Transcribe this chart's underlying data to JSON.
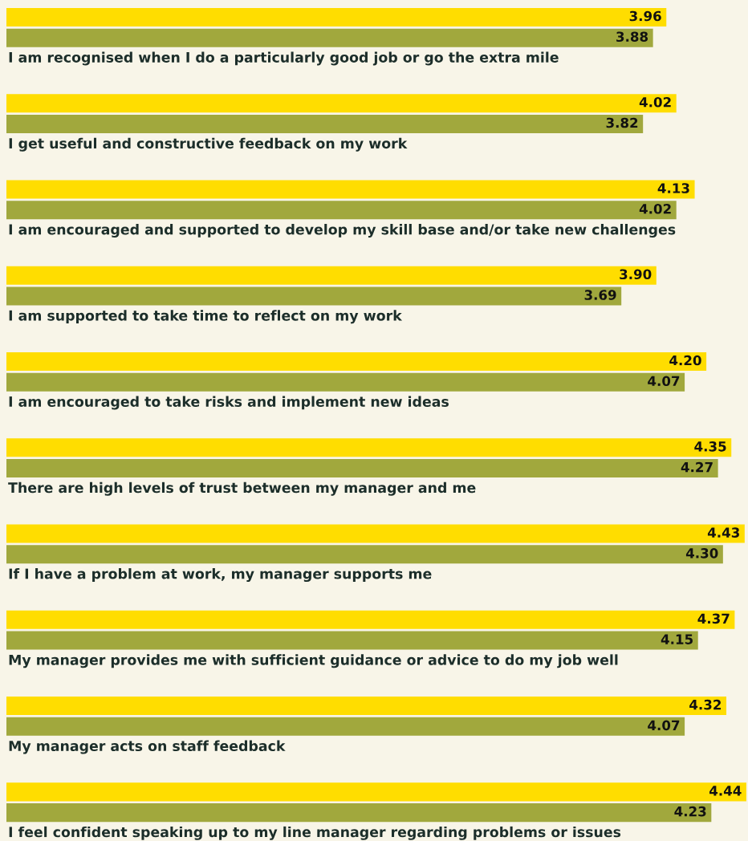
{
  "chart_data": {
    "type": "bar",
    "orientation": "horizontal",
    "categories": [
      "I am recognised when I do a particularly good job or go the extra mile",
      "I get useful and constructive feedback on my work",
      "I am encouraged and supported to develop my skill base and/or take new challenges",
      "I am supported to take time to reflect on my work",
      "I am encouraged to take risks and implement new ideas",
      "There are high levels of trust between my manager and me",
      "If I have a problem at work, my manager supports me",
      "My manager provides me with sufficient guidance or advice to do my job well",
      "My manager acts on staff feedback",
      "I feel confident speaking up to my line manager regarding problems or issues"
    ],
    "series": [
      {
        "color": "#ffdd00",
        "values": [
          3.96,
          4.02,
          4.13,
          3.9,
          4.2,
          4.35,
          4.43,
          4.37,
          4.32,
          4.44
        ],
        "value_labels": [
          "3.96",
          "4.02",
          "4.13",
          "3.90",
          "4.20",
          "4.35",
          "4.43",
          "4.37",
          "4.32",
          "4.44"
        ]
      },
      {
        "color": "#a1a83d",
        "values": [
          3.88,
          3.82,
          4.02,
          3.69,
          4.07,
          4.27,
          4.3,
          4.15,
          4.07,
          4.23
        ],
        "value_labels": [
          "3.88",
          "3.82",
          "4.02",
          "3.69",
          "4.07",
          "4.27",
          "4.30",
          "4.15",
          "4.07",
          "4.23"
        ]
      }
    ],
    "xlim": [
      0,
      4.45
    ],
    "tick_labels": false
  }
}
